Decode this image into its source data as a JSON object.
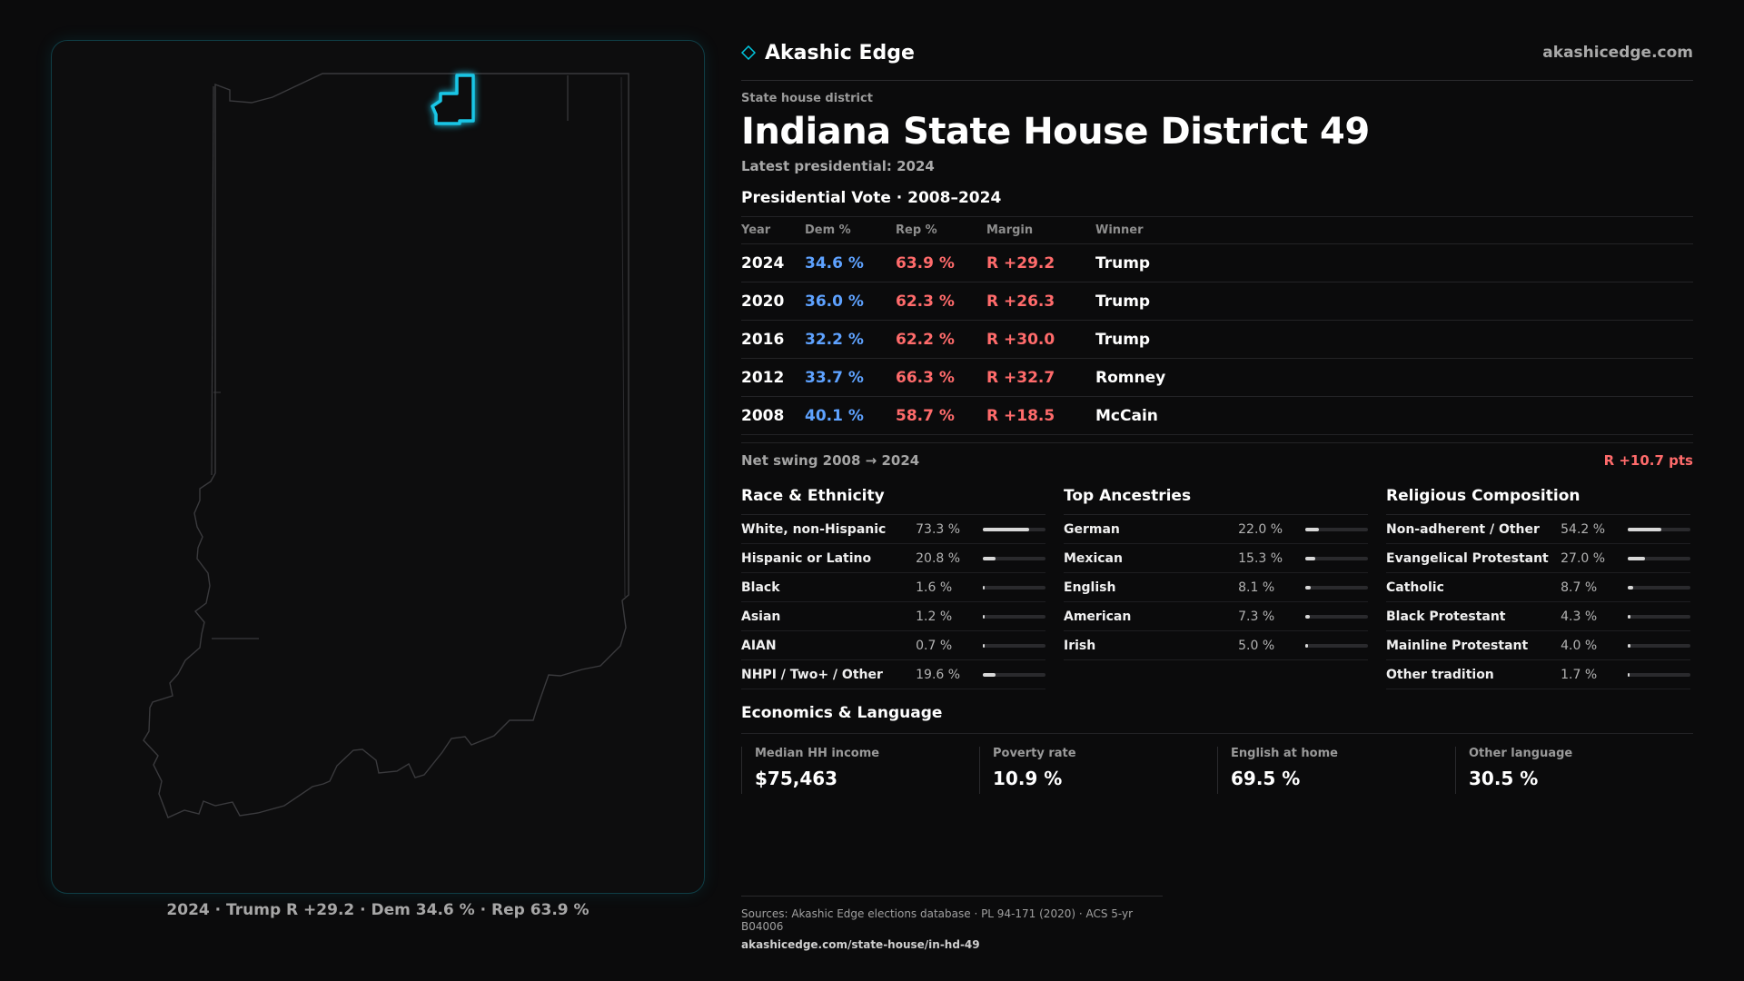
{
  "brand": {
    "name": "Akashic Edge",
    "url": "akashicedge.com",
    "icon": "diamond-icon",
    "accent": "#00c8e0"
  },
  "district": {
    "kicker": "State house district",
    "title": "Indiana State House District 49",
    "latest": "Latest presidential: 2024"
  },
  "presidential": {
    "title": "Presidential Vote · 2008–2024",
    "headers": {
      "year": "Year",
      "dem": "Dem %",
      "rep": "Rep %",
      "margin": "Margin",
      "winner": "Winner"
    },
    "rows": [
      {
        "year": "2024",
        "dem": "34.6 %",
        "rep": "63.9 %",
        "margin": "R +29.2",
        "winner": "Trump"
      },
      {
        "year": "2020",
        "dem": "36.0 %",
        "rep": "62.3 %",
        "margin": "R +26.3",
        "winner": "Trump"
      },
      {
        "year": "2016",
        "dem": "32.2 %",
        "rep": "62.2 %",
        "margin": "R +30.0",
        "winner": "Trump"
      },
      {
        "year": "2012",
        "dem": "33.7 %",
        "rep": "66.3 %",
        "margin": "R +32.7",
        "winner": "Romney"
      },
      {
        "year": "2008",
        "dem": "40.1 %",
        "rep": "58.7 %",
        "margin": "R +18.5",
        "winner": "McCain"
      }
    ],
    "colors": {
      "dem": "#5ea2ff",
      "rep": "#ff6b6b"
    }
  },
  "swing": {
    "label": "Net swing 2008 → 2024",
    "value": "R +10.7 pts"
  },
  "race": {
    "title": "Race & Ethnicity",
    "rows": [
      {
        "label": "White, non-Hispanic",
        "pct": "73.3 %",
        "value": 73.3
      },
      {
        "label": "Hispanic or Latino",
        "pct": "20.8 %",
        "value": 20.8
      },
      {
        "label": "Black",
        "pct": "1.6 %",
        "value": 1.6
      },
      {
        "label": "Asian",
        "pct": "1.2 %",
        "value": 1.2
      },
      {
        "label": "AIAN",
        "pct": "0.7 %",
        "value": 0.7
      },
      {
        "label": "NHPI / Two+ / Other",
        "pct": "19.6 %",
        "value": 19.6
      }
    ]
  },
  "ancestry": {
    "title": "Top Ancestries",
    "rows": [
      {
        "label": "German",
        "pct": "22.0 %",
        "value": 22.0
      },
      {
        "label": "Mexican",
        "pct": "15.3 %",
        "value": 15.3
      },
      {
        "label": "English",
        "pct": "8.1 %",
        "value": 8.1
      },
      {
        "label": "American",
        "pct": "7.3 %",
        "value": 7.3
      },
      {
        "label": "Irish",
        "pct": "5.0 %",
        "value": 5.0
      }
    ]
  },
  "religion": {
    "title": "Religious Composition",
    "rows": [
      {
        "label": "Non-adherent / Other",
        "pct": "54.2 %",
        "value": 54.2
      },
      {
        "label": "Evangelical Protestant",
        "pct": "27.0 %",
        "value": 27.0
      },
      {
        "label": "Catholic",
        "pct": "8.7 %",
        "value": 8.7
      },
      {
        "label": "Black Protestant",
        "pct": "4.3 %",
        "value": 4.3
      },
      {
        "label": "Mainline Protestant",
        "pct": "4.0 %",
        "value": 4.0
      },
      {
        "label": "Other tradition",
        "pct": "1.7 %",
        "value": 1.7
      }
    ]
  },
  "economics": {
    "title": "Economics & Language",
    "items": [
      {
        "label": "Median HH income",
        "value": "$75,463"
      },
      {
        "label": "Poverty rate",
        "value": "10.9 %"
      },
      {
        "label": "English at home",
        "value": "69.5 %"
      },
      {
        "label": "Other language",
        "value": "30.5 %"
      }
    ]
  },
  "map": {
    "caption": "2024 · Trump R +29.2 · Dem 34.6 % · Rep 63.9 %",
    "highlight_color": "#19c6e6"
  },
  "sources": {
    "line": "Sources: Akashic Edge elections database · PL 94-171 (2020) · ACS 5-yr B04006",
    "url": "akashicedge.com/state-house/in-hd-49"
  }
}
